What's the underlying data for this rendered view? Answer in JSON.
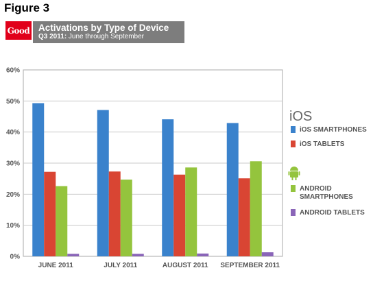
{
  "figure_label": "Figure 3",
  "logo_text": "Good",
  "banner": {
    "title": "Activations by Type of Device",
    "subtitle_bold": "Q3 2011:",
    "subtitle_rest": " June through September"
  },
  "legend": {
    "ios_group_label": "iOS",
    "android_group_icon": "android-icon",
    "items": [
      {
        "label": "iOS SMARTPHONES",
        "color": "#3a82cc"
      },
      {
        "label": "iOS TABLETS",
        "color": "#d94533"
      },
      {
        "label": "ANDROID",
        "label2": "SMARTPHONES",
        "color": "#94c43d"
      },
      {
        "label": "ANDROID TABLETS",
        "color": "#8a65b8"
      }
    ]
  },
  "chart_data": {
    "type": "bar",
    "categories": [
      "JUNE 2011",
      "JULY 2011",
      "AUGUST 2011",
      "SEPTEMBER 2011"
    ],
    "series": [
      {
        "name": "iOS SMARTPHONES",
        "color": "#3a82cc",
        "values": [
          49.3,
          47.1,
          44.1,
          42.9
        ]
      },
      {
        "name": "iOS TABLETS",
        "color": "#d94533",
        "values": [
          27.2,
          27.3,
          26.3,
          25.1
        ]
      },
      {
        "name": "ANDROID SMARTPHONES",
        "color": "#94c43d",
        "values": [
          22.6,
          24.7,
          28.6,
          30.6
        ]
      },
      {
        "name": "ANDROID TABLETS",
        "color": "#8a65b8",
        "values": [
          0.8,
          0.8,
          0.9,
          1.3
        ]
      }
    ],
    "ylim": [
      0,
      60
    ],
    "yticks": [
      "0%",
      "10%",
      "20%",
      "30%",
      "40%",
      "50%",
      "60%"
    ],
    "xlabel": "",
    "ylabel": "",
    "grid": true,
    "legend_position": "right"
  }
}
